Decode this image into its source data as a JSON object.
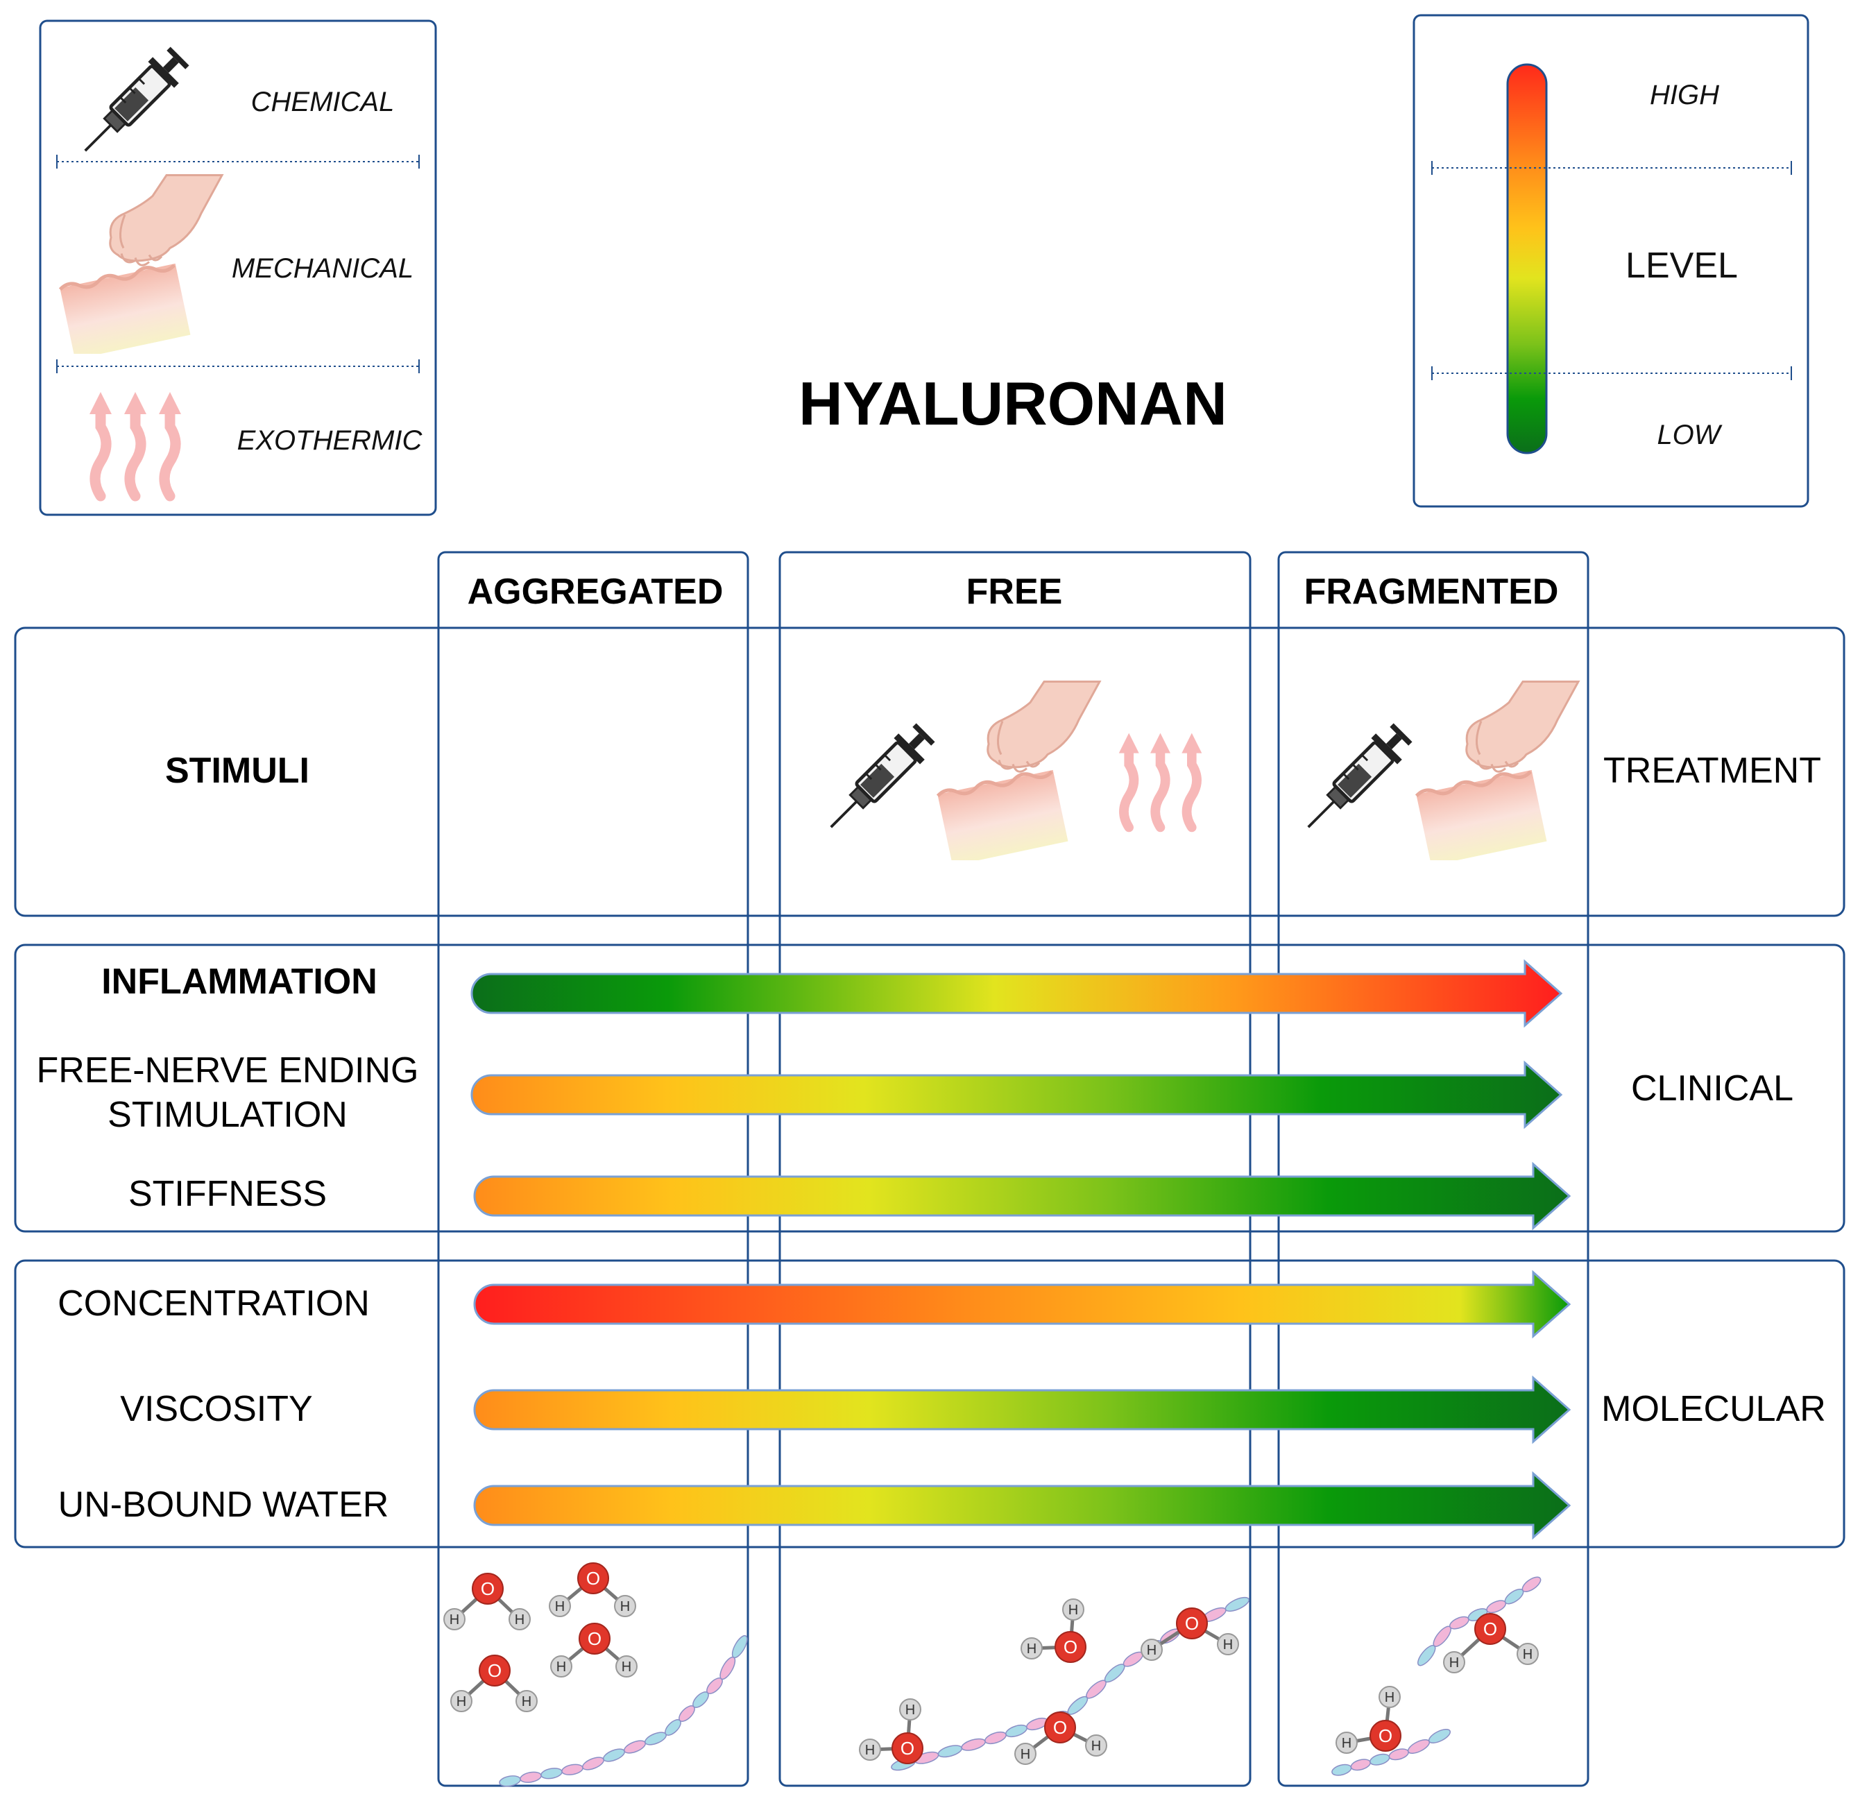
{
  "title": "HYALURONAN",
  "stimuli_legend": {
    "chemical": "CHEMICAL",
    "mechanical": "MECHANICAL",
    "exothermic": "EXOTHERMIC"
  },
  "level_legend": {
    "high": "HIGH",
    "level": "LEVEL",
    "low": "LOW",
    "scale_colors": [
      "#ff2a1a",
      "#ff8a1a",
      "#ffc21a",
      "#e2e41e",
      "#7cc21a",
      "#0a9a0a",
      "#0b6e1a"
    ]
  },
  "columns": {
    "aggregated": "AGGREGATED",
    "free": "FREE",
    "fragmented": "FRAGMENTED"
  },
  "stimuli_row": {
    "label": "STIMULI",
    "group": "TREATMENT",
    "aggregated_icons": [],
    "free_icons": [
      "syringe-icon",
      "hand-skin-icon",
      "heat-waves-icon"
    ],
    "fragmented_icons": [
      "syringe-icon",
      "hand-skin-icon"
    ]
  },
  "clinical": {
    "group": "CLINICAL",
    "rows": [
      {
        "label": "INFLAMMATION",
        "from": "low",
        "to": "high"
      },
      {
        "label_line1": "FREE-NERVE ENDING",
        "label_line2": "STIMULATION",
        "from": "medium",
        "to": "low"
      },
      {
        "label": "STIFFNESS",
        "from": "medium",
        "to": "low"
      }
    ]
  },
  "molecular": {
    "group": "MOLECULAR",
    "rows": [
      {
        "label": "CONCENTRATION",
        "from": "high",
        "to": "low"
      },
      {
        "label": "VISCOSITY",
        "from": "medium",
        "to": "low"
      },
      {
        "label": "UN-BOUND WATER",
        "from": "medium",
        "to": "low"
      }
    ]
  },
  "molecule_labels": {
    "oxygen": "O",
    "hydrogen": "H"
  },
  "colors": {
    "frame": "#1f4e8c",
    "red": "#ff1e1e",
    "orange": "#ff8c1a",
    "yellow": "#e3e51f",
    "green": "#0a9a0a",
    "dark_green": "#0b6e1a",
    "skin": "#f5cfc2",
    "heat": "#f7b8b8",
    "oxygen": "#e0362a",
    "hydrogen": "#d7d7d7"
  }
}
